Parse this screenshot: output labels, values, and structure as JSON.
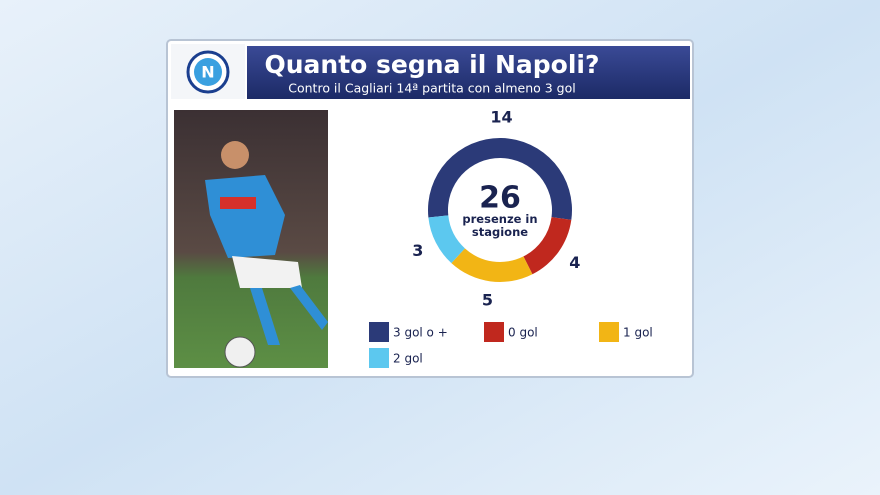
{
  "chart_data": {
    "type": "pie",
    "title": "Quanto segna il Napoli?",
    "subtitle": "Contro il Cagliari 14ª partita con almeno 3 gol",
    "center_value": 26,
    "center_label": "presenze in stagione",
    "categories": [
      "3 gol o +",
      "0 gol",
      "1 gol",
      "2 gol"
    ],
    "values": [
      14,
      4,
      5,
      3
    ],
    "colors": [
      "#2b3a78",
      "#c0281e",
      "#f2b515",
      "#5cc8ef"
    ]
  }
}
